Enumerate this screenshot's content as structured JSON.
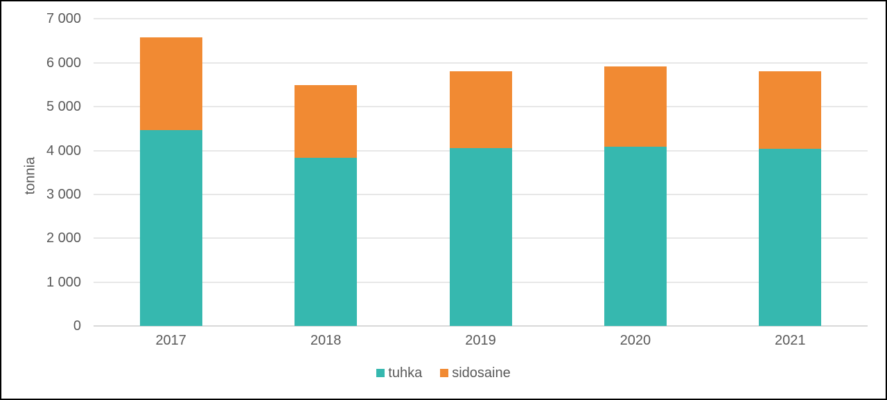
{
  "chart_data": {
    "type": "bar",
    "stacked": true,
    "title": "",
    "xlabel": "",
    "ylabel": "tonnia",
    "categories": [
      "2017",
      "2018",
      "2019",
      "2020",
      "2021"
    ],
    "series": [
      {
        "name": "tuhka",
        "color": "#36B8AF",
        "values": [
          4470,
          3840,
          4050,
          4090,
          4040
        ]
      },
      {
        "name": "sidosaine",
        "color": "#F18A33",
        "values": [
          2110,
          1650,
          1760,
          1820,
          1770
        ]
      }
    ],
    "ylim": [
      0,
      7000
    ],
    "yticks": [
      0,
      1000,
      2000,
      3000,
      4000,
      5000,
      6000,
      7000
    ],
    "ytick_labels": [
      "0",
      "1 000",
      "2 000",
      "3 000",
      "4 000",
      "5 000",
      "6 000",
      "7 000"
    ],
    "grid": true,
    "legend_position": "bottom",
    "colors": {
      "text": "#595959",
      "gridline": "#E7E7E7",
      "axis_baseline": "#D8D8D8",
      "background": "#FFFFFF",
      "frame_border": "#000000"
    }
  }
}
